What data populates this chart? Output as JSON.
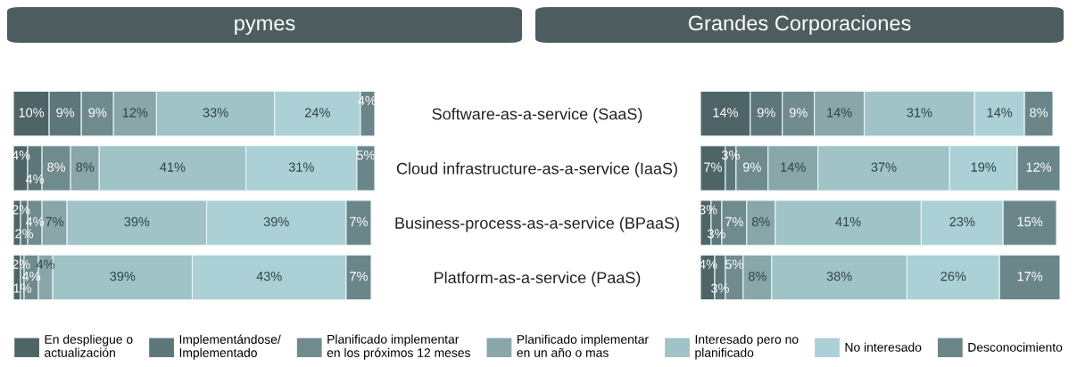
{
  "chart_data": [
    {
      "type": "bar",
      "title": "pymes",
      "orientation": "horizontal",
      "stacked": true,
      "tick_labels": "y",
      "legend": "bottom",
      "categories": [
        "Software-as-a-service (SaaS)",
        "Cloud infrastructure-as-a-service (IaaS)",
        "Business-process-as-a-service (BPaaS)",
        "Platform-as-a-service (PaaS)"
      ],
      "series": [
        {
          "name": "En despliegue o\nactualización",
          "color": "#4f6467",
          "values": [
            10,
            4,
            2,
            2
          ],
          "value_labels": [
            "10%",
            "4%",
            "2%",
            "2%"
          ]
        },
        {
          "name": "Implementándose/\nImplementado",
          "color": "#5d7679",
          "values": [
            9,
            4,
            2,
            1
          ],
          "value_labels": [
            "9%",
            "4%",
            "2%",
            "1%"
          ]
        },
        {
          "name": "Planificado implementar\nen los próximos 12 meses",
          "color": "#6f8b8e",
          "values": [
            9,
            8,
            4,
            4
          ],
          "value_labels": [
            "9%",
            "8%",
            "4%",
            "4%"
          ]
        },
        {
          "name": "Planificado implementar\nen un año o mas",
          "color": "#89a6a9",
          "values": [
            12,
            8,
            7,
            4
          ],
          "value_labels": [
            "12%",
            "8%",
            "7%",
            "4%"
          ]
        },
        {
          "name": "Interesado pero no\nplanificado",
          "color": "#a0c3c7",
          "values": [
            33,
            41,
            39,
            39
          ],
          "value_labels": [
            "33%",
            "41%",
            "39%",
            "39%"
          ]
        },
        {
          "name": "No interesado",
          "color": "#abd0d5",
          "values": [
            24,
            31,
            39,
            43
          ],
          "value_labels": [
            "24%",
            "31%",
            "39%",
            "43%"
          ]
        },
        {
          "name": "Desconocimiento",
          "color": "#6b8689",
          "values": [
            4,
            5,
            7,
            7
          ],
          "value_labels": [
            "4%",
            "5%",
            "7%",
            "7%"
          ]
        }
      ]
    },
    {
      "type": "bar",
      "title": "Grandes Corporaciones",
      "orientation": "horizontal",
      "stacked": true,
      "tick_labels": false,
      "categories": [
        null,
        null,
        null,
        null
      ],
      "series": [
        {
          "color": "#4f6467",
          "values": [
            14,
            7,
            3,
            4
          ],
          "value_labels": [
            "14%",
            "7%",
            "3%",
            "4%"
          ]
        },
        {
          "color": "#5d7679",
          "values": [
            9,
            3,
            3,
            3
          ],
          "value_labels": [
            "9%",
            "3%",
            "3%",
            "3%"
          ]
        },
        {
          "color": "#6f8b8e",
          "values": [
            9,
            9,
            7,
            5
          ],
          "value_labels": [
            "9%",
            "9%",
            "7%",
            "5%"
          ]
        },
        {
          "color": "#89a6a9",
          "values": [
            14,
            14,
            8,
            8
          ],
          "value_labels": [
            "14%",
            "14%",
            "8%",
            "8%"
          ]
        },
        {
          "color": "#a0c3c7",
          "values": [
            31,
            37,
            41,
            38
          ],
          "value_labels": [
            "31%",
            "37%",
            "41%",
            "38%"
          ]
        },
        {
          "color": "#abd0d5",
          "values": [
            14,
            19,
            23,
            26
          ],
          "value_labels": [
            "14%",
            "19%",
            "23%",
            "26%"
          ]
        },
        {
          "color": "#6b8689",
          "values": [
            8,
            12,
            15,
            17
          ],
          "value_labels": [
            "8%",
            "12%",
            "15%",
            "17%"
          ]
        }
      ]
    }
  ]
}
